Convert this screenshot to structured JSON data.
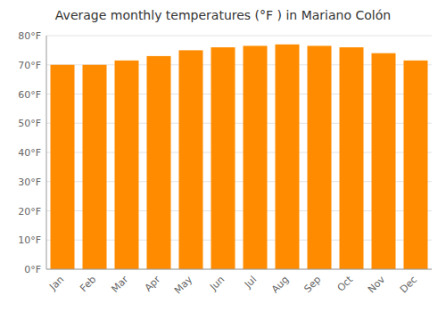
{
  "chart_data": {
    "type": "bar",
    "title": "Average monthly temperatures (°F ) in Mariano Colón",
    "categories": [
      "Jan",
      "Feb",
      "Mar",
      "Apr",
      "May",
      "Jun",
      "Jul",
      "Aug",
      "Sep",
      "Oct",
      "Nov",
      "Dec"
    ],
    "values": [
      70.0,
      70.0,
      71.5,
      73.0,
      75.0,
      76.0,
      76.5,
      77.0,
      76.5,
      76.0,
      74.0,
      71.5
    ],
    "color": "#FF8C00",
    "ylim": [
      0,
      80
    ],
    "yticks": [
      {
        "value": 0,
        "label": "0°F"
      },
      {
        "value": 10,
        "label": "10°F"
      },
      {
        "value": 20,
        "label": "20°F"
      },
      {
        "value": 30,
        "label": "30°F"
      },
      {
        "value": 40,
        "label": "40°F"
      },
      {
        "value": 50,
        "label": "50°F"
      },
      {
        "value": 60,
        "label": "60°F"
      },
      {
        "value": 70,
        "label": "70°F"
      },
      {
        "value": 80,
        "label": "80°F"
      }
    ],
    "grid": true
  }
}
